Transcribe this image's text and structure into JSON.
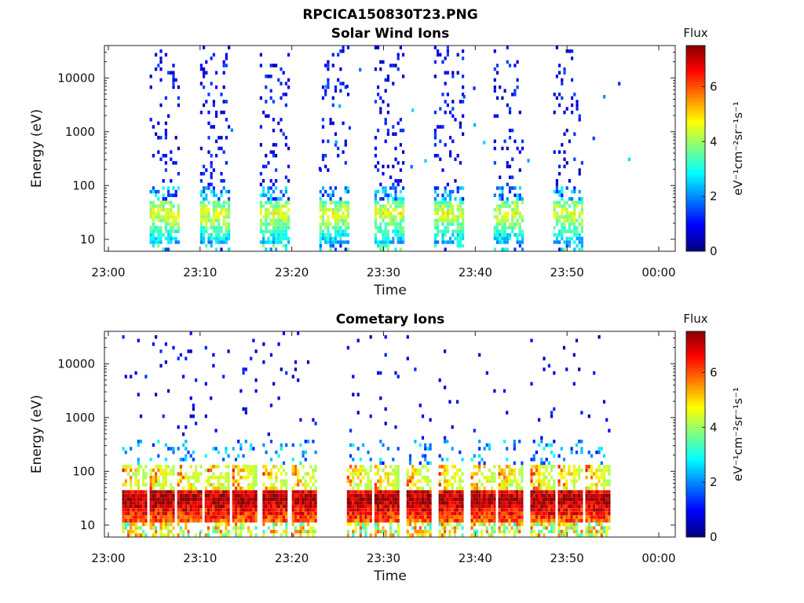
{
  "title": "RPCICA150830T23.PNG",
  "panels": [
    {
      "title": "Solar Wind Ions",
      "xlabel": "Time",
      "ylabel": "Energy (eV)",
      "x_tick_labels": [
        "23:00",
        "23:10",
        "23:20",
        "23:30",
        "23:40",
        "23:50",
        "00:00"
      ],
      "y_tick_labels": [
        "10",
        "100",
        "1000",
        "10000"
      ],
      "colorbar_title": "Flux",
      "colorbar_label": "eV⁻¹cm⁻²sr⁻¹s⁻¹",
      "colorbar_ticks": [
        "0",
        "2",
        "4",
        "6"
      ]
    },
    {
      "title": "Cometary Ions",
      "xlabel": "Time",
      "ylabel": "Energy (eV)",
      "x_tick_labels": [
        "23:00",
        "23:10",
        "23:20",
        "23:30",
        "23:40",
        "23:50",
        "00:00"
      ],
      "y_tick_labels": [
        "10",
        "100",
        "1000",
        "10000"
      ],
      "colorbar_title": "Flux",
      "colorbar_label": "eV⁻¹cm⁻²sr⁻¹s⁻¹",
      "colorbar_ticks": [
        "0",
        "2",
        "4",
        "6"
      ]
    }
  ],
  "chart_data": [
    {
      "type": "heatmap",
      "title": "Solar Wind Ions",
      "xlabel": "Time",
      "ylabel": "Energy (eV)",
      "x_range": [
        "23:00",
        "00:00"
      ],
      "y_scale": "log",
      "y_range": [
        6,
        40000
      ],
      "colorscale": "jet",
      "clim": [
        0,
        7.5
      ],
      "colorbar": "Flux (eV^-1 cm^-2 sr^-1 s^-1)",
      "scans_start_minutes": [
        4.5,
        10.0,
        16.5,
        23.0,
        29.0,
        35.5,
        42.0,
        48.5
      ],
      "scan_duration_minutes": 3.5,
      "peak_energy_eV": 30,
      "peak_flux": 4.5,
      "peak_energy_range_eV": [
        10,
        45
      ]
    },
    {
      "type": "heatmap",
      "title": "Cometary Ions",
      "xlabel": "Time",
      "ylabel": "Energy (eV)",
      "x_range": [
        "23:00",
        "00:00"
      ],
      "y_scale": "log",
      "y_range": [
        6,
        40000
      ],
      "colorscale": "jet",
      "clim": [
        0,
        7.5
      ],
      "colorbar": "Flux (eV^-1 cm^-2 sr^-1 s^-1)",
      "scans_start_minutes": [
        1.5,
        4.5,
        7.5,
        10.5,
        13.5,
        16.8,
        20.0,
        26.0,
        29.0,
        32.5,
        36.0,
        39.5,
        42.5,
        46.0,
        49.0,
        52.0
      ],
      "scan_duration_minutes": 3.0,
      "peak_energy_eV": 30,
      "peak_flux": 7.0,
      "peak_energy_range_eV": [
        12,
        45
      ]
    }
  ]
}
